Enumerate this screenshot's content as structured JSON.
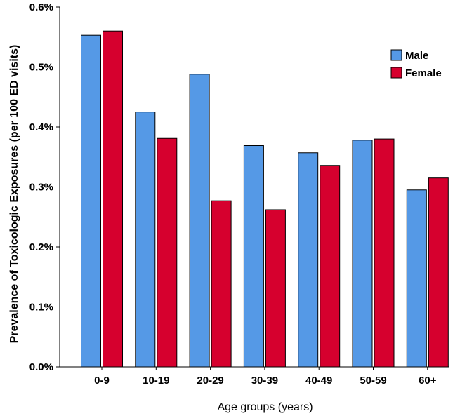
{
  "chart_data": {
    "type": "bar",
    "title": "",
    "xlabel": "Age groups (years)",
    "ylabel": "Prevalence of Toxicologic Exposures (per 100 ED visits)",
    "categories": [
      "0-9",
      "10-19",
      "20-29",
      "30-39",
      "40-49",
      "50-59",
      "60+"
    ],
    "series": [
      {
        "name": "Male",
        "color": "#5599E6",
        "values": [
          0.553,
          0.425,
          0.488,
          0.369,
          0.357,
          0.378,
          0.295
        ]
      },
      {
        "name": "Female",
        "color": "#D6002E",
        "values": [
          0.56,
          0.381,
          0.277,
          0.262,
          0.336,
          0.38,
          0.315
        ]
      }
    ],
    "ylim": [
      0,
      0.6
    ],
    "yticks": [
      0,
      0.1,
      0.2,
      0.3,
      0.4,
      0.5,
      0.6
    ],
    "ytick_labels": [
      "0.0%",
      "0.1%",
      "0.2%",
      "0.3%",
      "0.4%",
      "0.5%",
      "0.6%"
    ],
    "grid": false,
    "legend_position": "top-right",
    "bar_edge_color": "#000000"
  }
}
